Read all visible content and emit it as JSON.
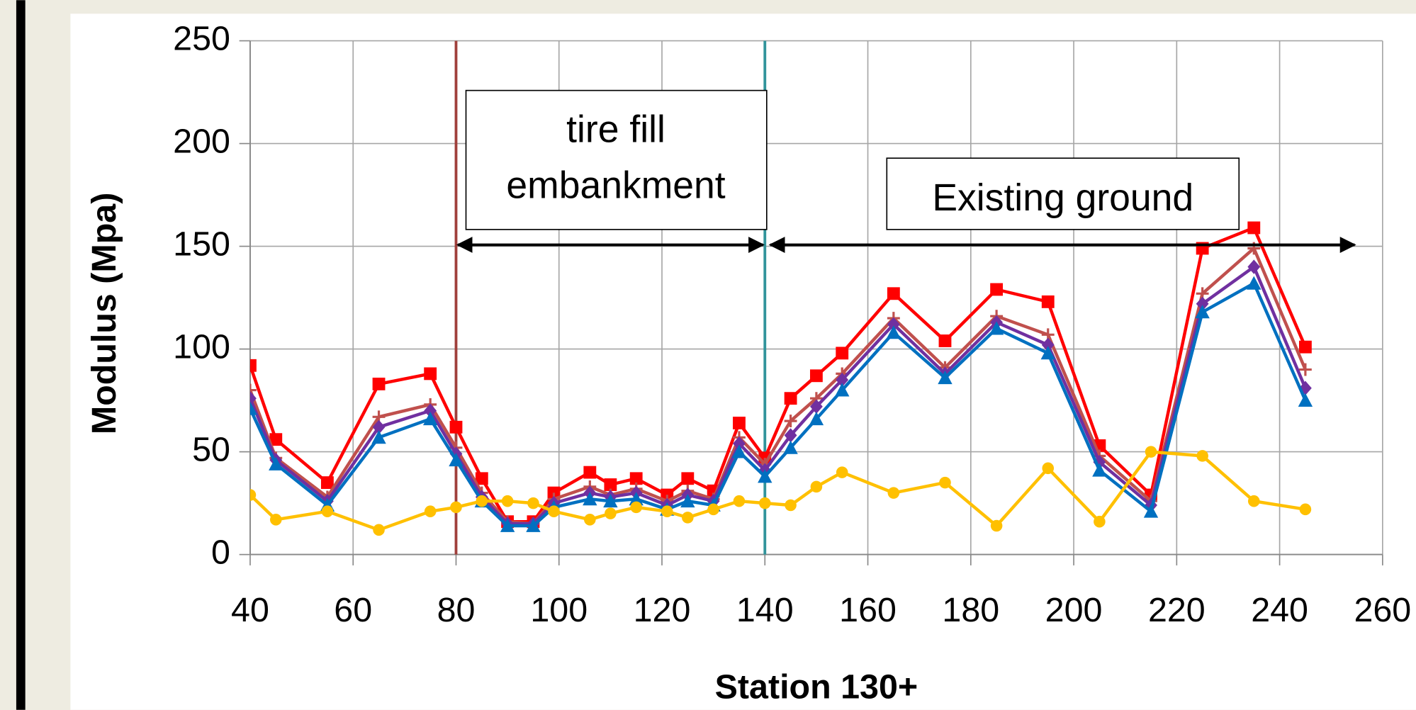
{
  "chart_data": {
    "type": "line",
    "xlabel": "Station 130+",
    "ylabel": "Modulus (Mpa)",
    "x": [
      40,
      45,
      55,
      65,
      75,
      80,
      85,
      90,
      95,
      99,
      106,
      110,
      115,
      121,
      125,
      130,
      135,
      140,
      145,
      150,
      155,
      165,
      175,
      185,
      195,
      205,
      215,
      225,
      235,
      245
    ],
    "series": [
      {
        "color": "#ff0000",
        "marker": "square",
        "values": [
          92,
          56,
          35,
          83,
          88,
          62,
          37,
          16,
          16,
          30,
          40,
          34,
          37,
          29,
          37,
          31,
          64,
          47,
          76,
          87,
          98,
          127,
          104,
          129,
          123,
          53,
          29,
          149,
          159,
          101
        ]
      },
      {
        "color": "#c0504d",
        "marker": "plus",
        "values": [
          80,
          47,
          28,
          67,
          73,
          52,
          30,
          16,
          15,
          27,
          33,
          29,
          32,
          26,
          31,
          27,
          57,
          44,
          65,
          76,
          88,
          115,
          91,
          116,
          107,
          48,
          26,
          127,
          149,
          90
        ]
      },
      {
        "color": "#7030a0",
        "marker": "diamond",
        "values": [
          76,
          46,
          26,
          62,
          70,
          49,
          28,
          15,
          15,
          25,
          30,
          28,
          30,
          24,
          29,
          26,
          54,
          41,
          58,
          72,
          85,
          112,
          88,
          113,
          102,
          45,
          24,
          122,
          140,
          81
        ]
      },
      {
        "color": "#0070c0",
        "marker": "triangle",
        "values": [
          71,
          44,
          24,
          57,
          66,
          46,
          26,
          14,
          14,
          23,
          27,
          26,
          27,
          22,
          26,
          24,
          50,
          38,
          52,
          66,
          80,
          108,
          86,
          110,
          98,
          41,
          21,
          118,
          132,
          75
        ]
      },
      {
        "color": "#ffc000",
        "marker": "circle",
        "values": [
          29,
          17,
          21,
          12,
          21,
          23,
          26,
          26,
          25,
          21,
          17,
          20,
          23,
          21,
          18,
          22,
          26,
          25,
          24,
          33,
          40,
          30,
          35,
          14,
          42,
          16,
          50,
          48,
          26,
          22
        ]
      }
    ],
    "xlim": [
      40,
      260
    ],
    "xticks": [
      40,
      60,
      80,
      100,
      120,
      140,
      160,
      180,
      200,
      220,
      240,
      260
    ],
    "ylim": [
      0,
      250
    ],
    "yticks": [
      0,
      50,
      100,
      150,
      200,
      250
    ],
    "grid": true,
    "vlines": [
      {
        "x": 80,
        "color": "#a0403c"
      },
      {
        "x": 140,
        "color": "#31949b"
      }
    ],
    "annotations": [
      {
        "lines": [
          "tire fill",
          "embankment"
        ]
      },
      {
        "lines": [
          "Existing ground"
        ]
      }
    ]
  }
}
